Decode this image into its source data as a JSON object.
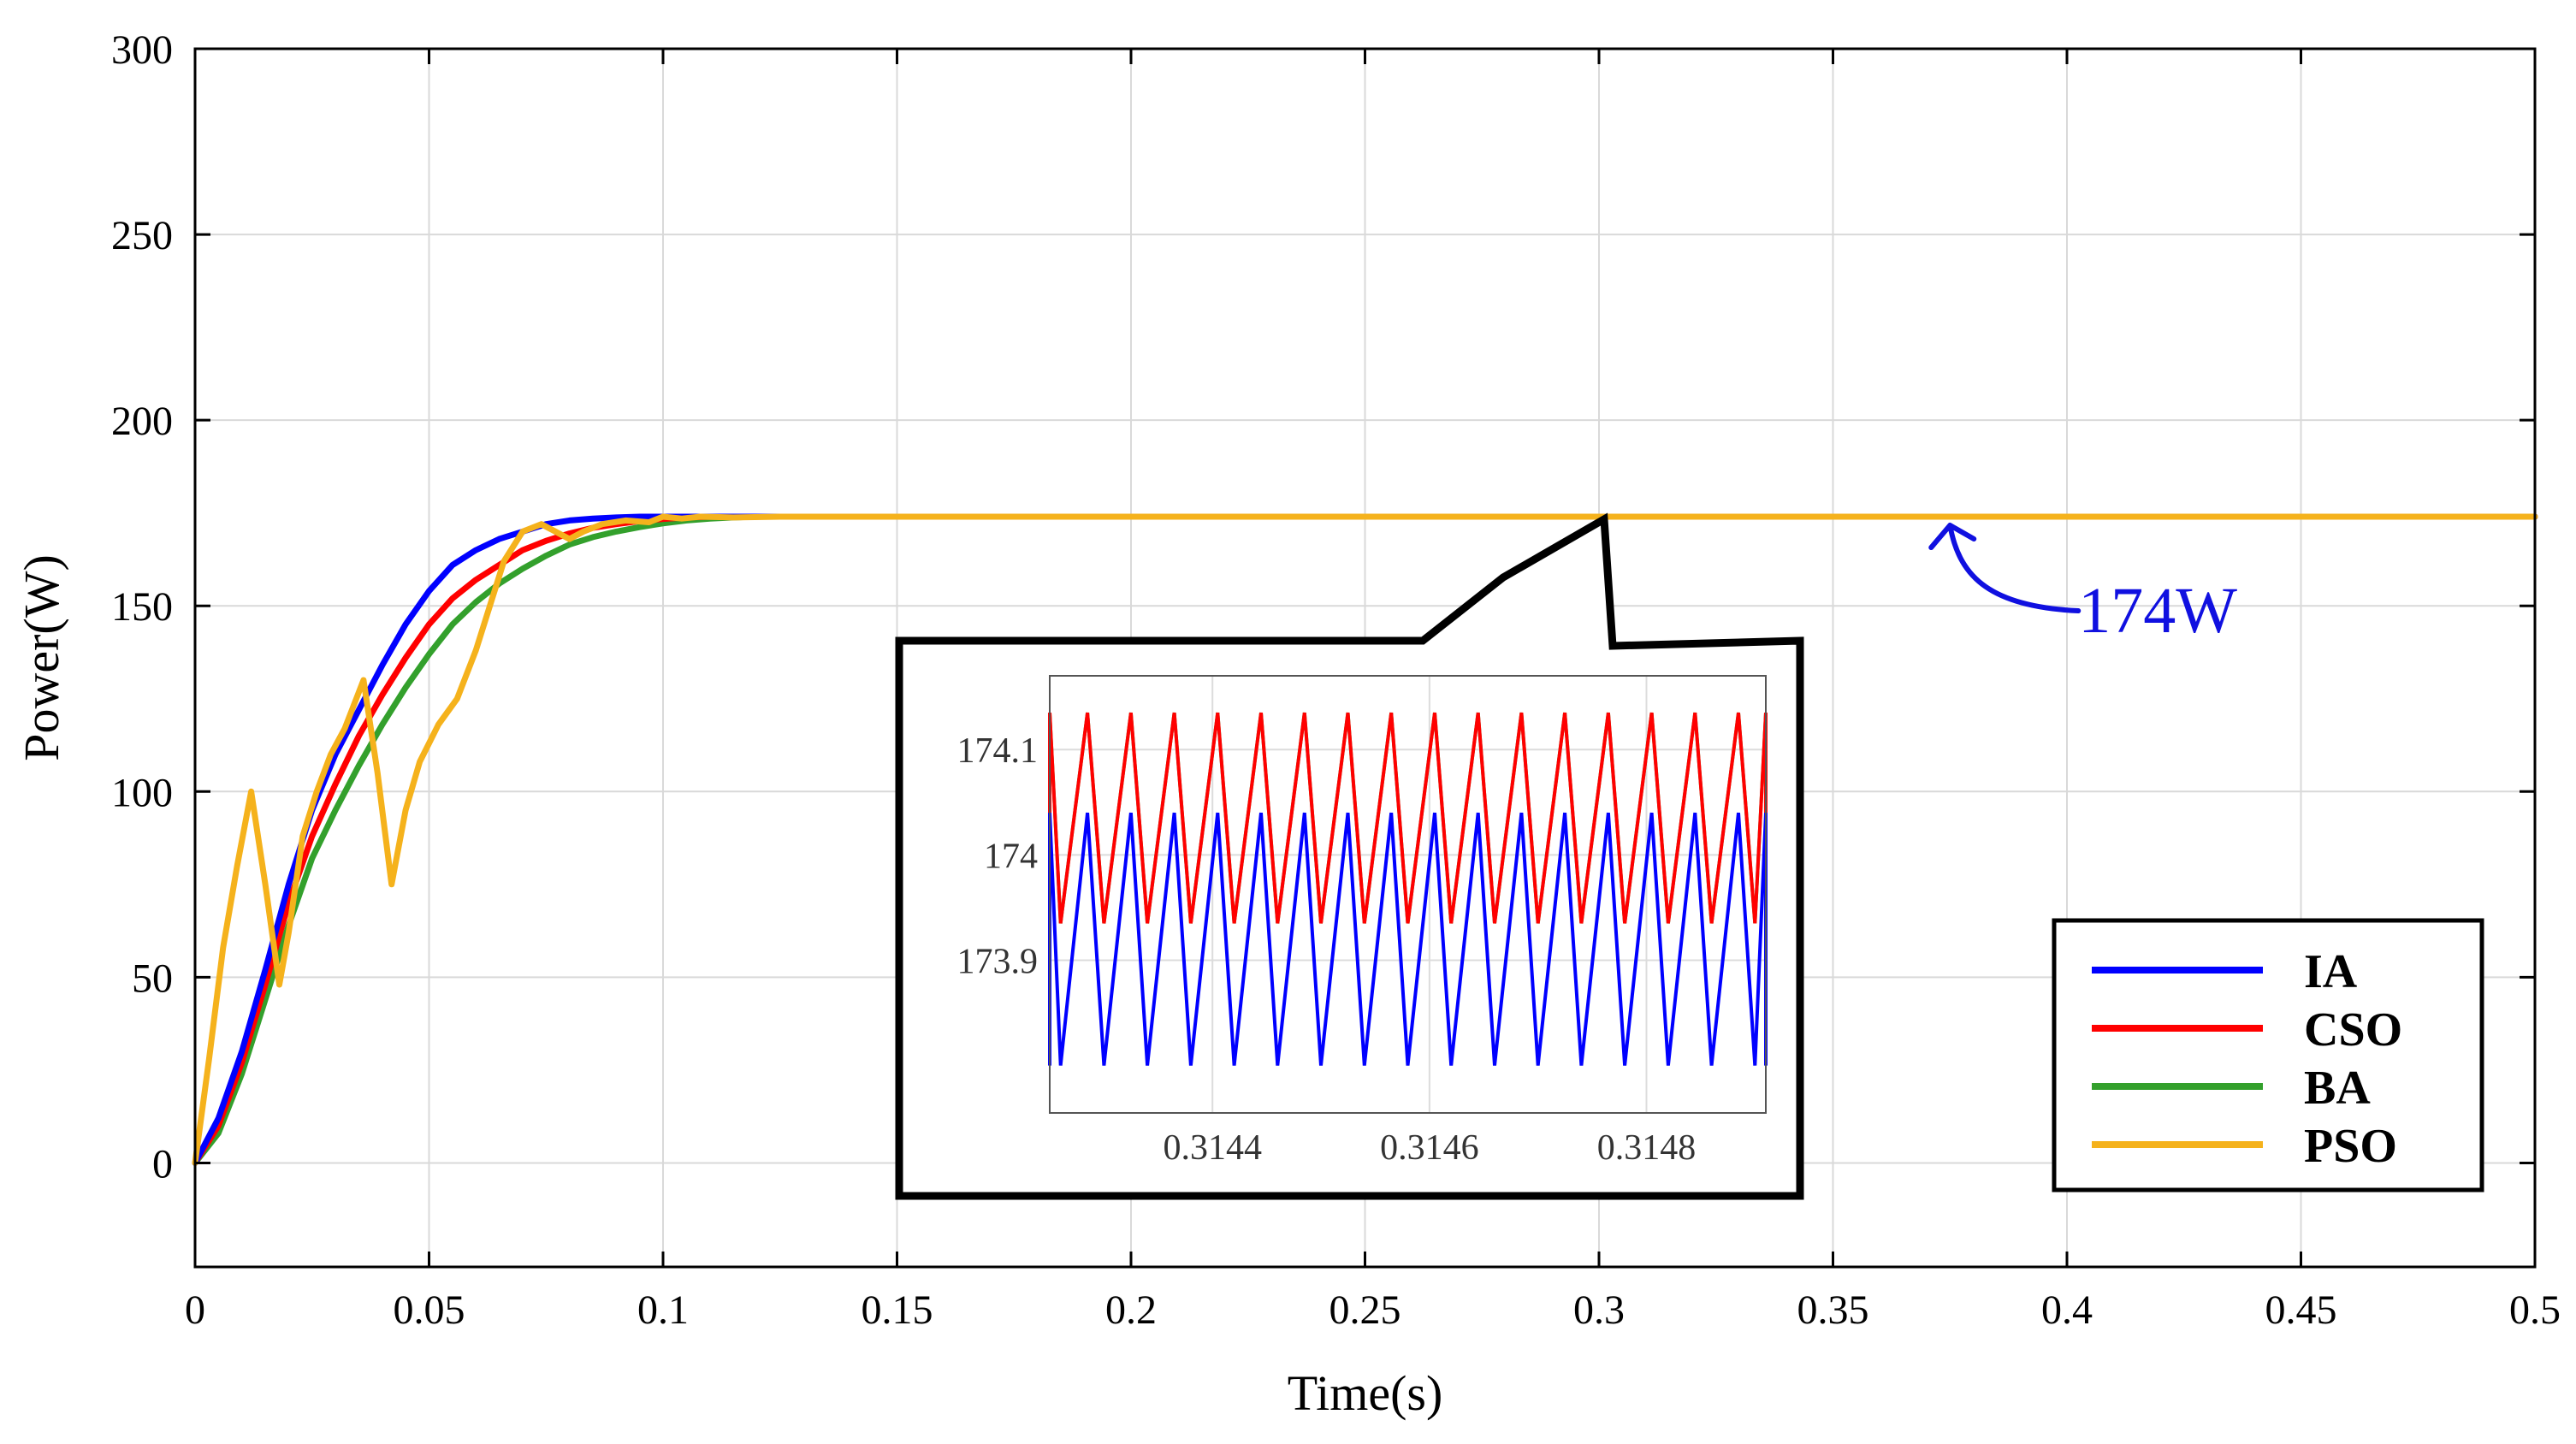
{
  "chart_data": {
    "type": "line",
    "title": "",
    "xlabel": "Time(s)",
    "ylabel": "Power(W)",
    "xlim": [
      0,
      0.5
    ],
    "ylim": [
      -28,
      300
    ],
    "x_ticks": [
      0,
      0.05,
      0.1,
      0.15,
      0.2,
      0.25,
      0.3,
      0.35,
      0.4,
      0.45,
      0.5
    ],
    "x_tick_labels": [
      "0",
      "0.05",
      "0.1",
      "0.15",
      "0.2",
      "0.25",
      "0.3",
      "0.35",
      "0.4",
      "0.45",
      "0.5"
    ],
    "y_ticks": [
      0,
      50,
      100,
      150,
      200,
      250,
      300
    ],
    "y_tick_labels": [
      "0",
      "50",
      "100",
      "150",
      "200",
      "250",
      "300"
    ],
    "grid": true,
    "legend_position": "bottom-right",
    "series": [
      {
        "name": "IA",
        "color": "#0000ff",
        "x": [
          0,
          0.005,
          0.01,
          0.015,
          0.02,
          0.025,
          0.03,
          0.035,
          0.04,
          0.045,
          0.05,
          0.055,
          0.06,
          0.065,
          0.07,
          0.075,
          0.08,
          0.085,
          0.09,
          0.095,
          0.1,
          0.105,
          0.11,
          0.5
        ],
        "y": [
          0,
          12,
          30,
          52,
          75,
          95,
          110,
          122,
          134,
          145,
          154,
          161,
          165,
          168,
          170,
          172,
          173,
          173.5,
          173.8,
          174,
          174,
          174,
          174,
          174
        ]
      },
      {
        "name": "CSO",
        "color": "#ff0000",
        "x": [
          0,
          0.005,
          0.01,
          0.015,
          0.02,
          0.025,
          0.03,
          0.035,
          0.04,
          0.045,
          0.05,
          0.055,
          0.06,
          0.065,
          0.07,
          0.075,
          0.08,
          0.085,
          0.09,
          0.095,
          0.1,
          0.105,
          0.11,
          0.115,
          0.12,
          0.5
        ],
        "y": [
          0,
          10,
          27,
          48,
          70,
          88,
          102,
          115,
          126,
          136,
          145,
          152,
          157,
          161,
          165,
          167.5,
          169.5,
          171,
          172,
          172.8,
          173.4,
          173.8,
          174,
          174,
          174,
          174
        ]
      },
      {
        "name": "BA",
        "color": "#33a02c",
        "x": [
          0,
          0.005,
          0.01,
          0.015,
          0.02,
          0.025,
          0.03,
          0.035,
          0.04,
          0.045,
          0.05,
          0.055,
          0.06,
          0.065,
          0.07,
          0.075,
          0.08,
          0.085,
          0.09,
          0.095,
          0.1,
          0.105,
          0.11,
          0.115,
          0.12,
          0.125,
          0.13,
          0.5
        ],
        "y": [
          0,
          8,
          24,
          44,
          64,
          82,
          95,
          107,
          118,
          128,
          137,
          145,
          151,
          156,
          160,
          163.5,
          166.5,
          168.5,
          170,
          171.2,
          172.2,
          173,
          173.5,
          173.8,
          174,
          174,
          174,
          174
        ]
      },
      {
        "name": "PSO",
        "color": "#f5b21c",
        "x": [
          0,
          0.003,
          0.006,
          0.009,
          0.012,
          0.015,
          0.018,
          0.02,
          0.023,
          0.026,
          0.029,
          0.032,
          0.036,
          0.039,
          0.042,
          0.045,
          0.048,
          0.052,
          0.056,
          0.06,
          0.063,
          0.066,
          0.07,
          0.074,
          0.077,
          0.08,
          0.083,
          0.087,
          0.092,
          0.097,
          0.1,
          0.104,
          0.108,
          0.115,
          0.125,
          0.135,
          0.5
        ],
        "y": [
          0,
          28,
          58,
          80,
          100,
          75,
          48,
          62,
          88,
          100,
          110,
          117,
          130,
          105,
          75,
          95,
          108,
          118,
          125,
          138,
          150,
          162,
          170,
          172,
          170,
          168,
          170,
          172,
          173,
          172.5,
          174,
          173.5,
          174,
          173.8,
          174,
          174,
          174
        ]
      }
    ],
    "annotations": [
      {
        "text": "174W",
        "color": "#1010e0",
        "points_to": {
          "x": 0.375,
          "y": 174
        }
      }
    ],
    "inset": {
      "type": "line",
      "description_source": "zoom",
      "xlim": [
        0.31425,
        0.31491
      ],
      "ylim": [
        173.755,
        174.17
      ],
      "x_ticks": [
        0.3144,
        0.3146,
        0.3148
      ],
      "x_tick_labels": [
        "0.3144",
        "0.3146",
        "0.3148"
      ],
      "y_ticks": [
        173.9,
        174,
        174.1
      ],
      "y_tick_labels": [
        "173.9",
        "174",
        "174.1"
      ],
      "grid": true,
      "period": 4e-05,
      "series": [
        {
          "name": "IA",
          "color": "#0000ff",
          "min": 173.8,
          "max": 174.04,
          "phase": 0.3143
        },
        {
          "name": "CSO",
          "color": "#ff0000",
          "min": 173.935,
          "max": 174.135,
          "phase": 0.3143
        },
        {
          "name": "BA",
          "color": "#33a02c",
          "min": 173.935,
          "max": 174.135,
          "phase": 0.3143
        }
      ]
    }
  }
}
